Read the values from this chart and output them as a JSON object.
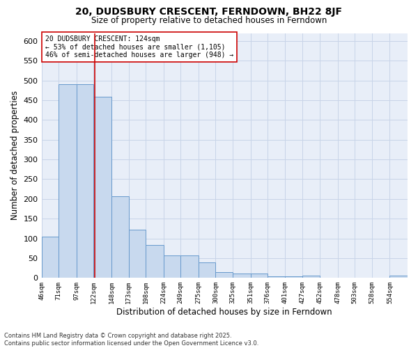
{
  "title_line1": "20, DUDSBURY CRESCENT, FERNDOWN, BH22 8JF",
  "title_line2": "Size of property relative to detached houses in Ferndown",
  "xlabel": "Distribution of detached houses by size in Ferndown",
  "ylabel": "Number of detached properties",
  "annotation_line1": "20 DUDSBURY CRESCENT: 124sqm",
  "annotation_line2": "← 53% of detached houses are smaller (1,105)",
  "annotation_line3": "46% of semi-detached houses are larger (948) →",
  "footnote_line1": "Contains HM Land Registry data © Crown copyright and database right 2025.",
  "footnote_line2": "Contains public sector information licensed under the Open Government Licence v3.0.",
  "bar_edges": [
    46,
    71,
    97,
    122,
    148,
    173,
    198,
    224,
    249,
    275,
    300,
    325,
    351,
    376,
    401,
    427,
    452,
    478,
    503,
    528,
    554
  ],
  "bar_heights": [
    105,
    490,
    490,
    458,
    207,
    123,
    83,
    57,
    57,
    40,
    14,
    12,
    12,
    4,
    4,
    6,
    0,
    0,
    0,
    0,
    6
  ],
  "bar_color": "#c8d9ee",
  "bar_edge_color": "#6699cc",
  "bar_linewidth": 0.7,
  "red_line_x": 124,
  "red_line_color": "#cc0000",
  "ylim": [
    0,
    620
  ],
  "yticks": [
    0,
    50,
    100,
    150,
    200,
    250,
    300,
    350,
    400,
    450,
    500,
    550,
    600
  ],
  "grid_color": "#c8d4e8",
  "bg_color": "#e8eef8",
  "tick_labels": [
    "46sqm",
    "71sqm",
    "97sqm",
    "122sqm",
    "148sqm",
    "173sqm",
    "198sqm",
    "224sqm",
    "249sqm",
    "275sqm",
    "300sqm",
    "325sqm",
    "351sqm",
    "376sqm",
    "401sqm",
    "427sqm",
    "452sqm",
    "478sqm",
    "503sqm",
    "528sqm",
    "554sqm"
  ],
  "figwidth": 6.0,
  "figheight": 5.0,
  "dpi": 100
}
